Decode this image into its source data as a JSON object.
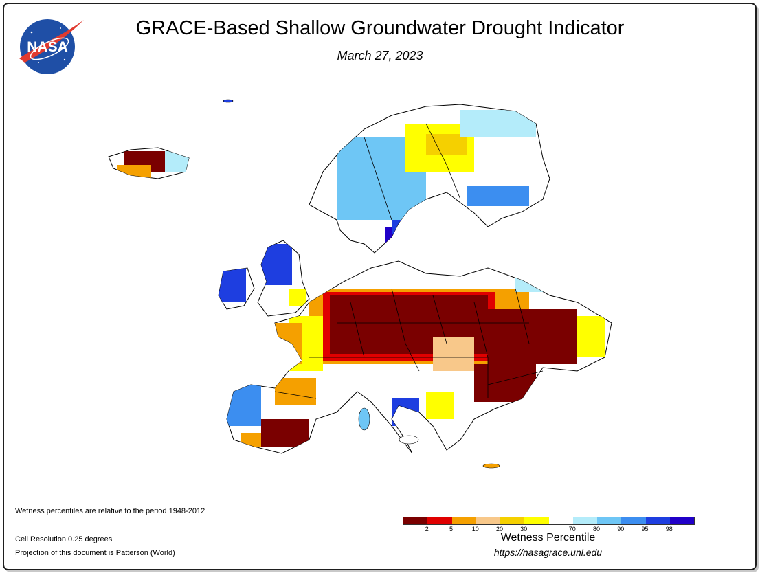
{
  "header": {
    "title": "GRACE-Based Shallow Groundwater Drought Indicator",
    "date": "March 27, 2023"
  },
  "logo": {
    "text": "NASA",
    "icon": "nasa-meatball-icon",
    "colors": {
      "blue": "#1f4fa6",
      "red": "#e03a2f"
    }
  },
  "notes": {
    "period": "Wetness percentiles are relative to the period 1948-2012",
    "resolution": "Cell Resolution 0.25 degrees",
    "projection": "Projection of this document is Patterson (World)"
  },
  "legend": {
    "label": "Wetness Percentile",
    "url": "https://nasagrace.unl.edu",
    "colors": [
      "#7a0000",
      "#e00000",
      "#f5a000",
      "#f8c88a",
      "#f5d000",
      "#ffff00",
      "#ffffff",
      "#b4ecfa",
      "#6ec6f5",
      "#3c8ef0",
      "#1e3ee0",
      "#2000c8"
    ],
    "ticks": [
      "2",
      "5",
      "10",
      "20",
      "30",
      "70",
      "80",
      "90",
      "95",
      "98"
    ]
  }
}
